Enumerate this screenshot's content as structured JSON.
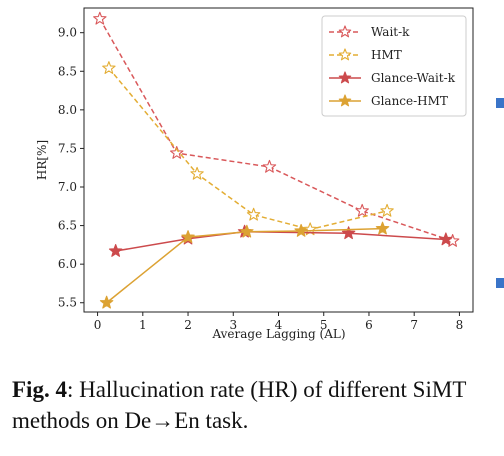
{
  "chart_data": {
    "type": "line",
    "title": "",
    "xlabel": "Average Lagging (AL)",
    "ylabel": "HR[%]",
    "xlim": [
      -0.3,
      8.3
    ],
    "ylim": [
      5.38,
      9.32
    ],
    "xticks": [
      0,
      1,
      2,
      3,
      4,
      5,
      6,
      7,
      8
    ],
    "yticks": [
      "5.5",
      "6.0",
      "6.5",
      "7.0",
      "7.5",
      "8.0",
      "8.5",
      "9.0"
    ],
    "grid": false,
    "legend_position": "top-right",
    "series": [
      {
        "name": "Wait-k",
        "color": "#d9585a",
        "dashed": true,
        "marker": "star-hollow",
        "x": [
          0.05,
          1.75,
          3.8,
          5.85,
          7.85
        ],
        "y": [
          9.18,
          7.44,
          7.26,
          6.69,
          6.3
        ]
      },
      {
        "name": "HMT",
        "color": "#e3ad34",
        "dashed": true,
        "marker": "star-hollow",
        "x": [
          0.25,
          2.2,
          3.45,
          4.7,
          6.4
        ],
        "y": [
          8.54,
          7.17,
          6.64,
          6.45,
          6.69
        ]
      },
      {
        "name": "Glance-Wait-k",
        "color": "#cc4a4c",
        "dashed": false,
        "marker": "star-filled",
        "x": [
          0.4,
          2.0,
          3.25,
          5.55,
          7.7
        ],
        "y": [
          6.17,
          6.33,
          6.42,
          6.4,
          6.32
        ]
      },
      {
        "name": "Glance-HMT",
        "color": "#dca233",
        "dashed": false,
        "marker": "star-filled",
        "x": [
          0.2,
          2.0,
          3.3,
          4.5,
          6.3
        ],
        "y": [
          5.5,
          6.35,
          6.42,
          6.43,
          6.46
        ]
      }
    ]
  },
  "caption": {
    "figure_label": "Fig. 4",
    "text": ": Hallucination rate (HR) of different SiMT methods on De→En task."
  },
  "colors": {
    "edge_marker": "#3a74c8"
  }
}
